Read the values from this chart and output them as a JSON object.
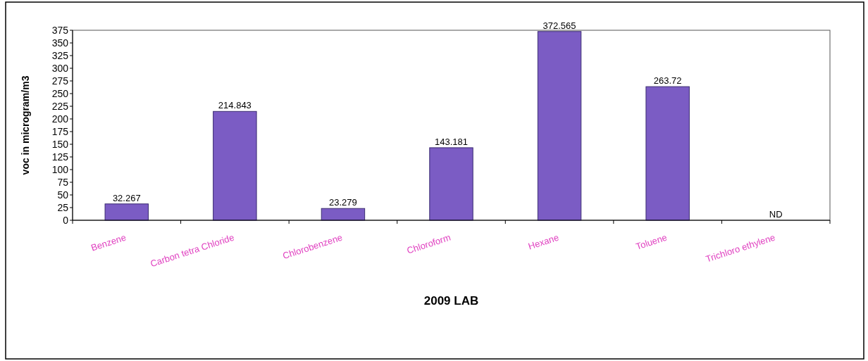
{
  "chart_data": {
    "type": "bar",
    "xlabel": "2009 LAB",
    "ylabel": "voc in microgram/m3",
    "categories": [
      "Benzene",
      "Carbon tetra Chloride",
      "Chlorobenzene",
      "Chloroform",
      "Hexane",
      "Toluene",
      "Trichloro ethylene"
    ],
    "values": [
      32.267,
      214.843,
      23.279,
      143.181,
      372.565,
      263.72,
      null
    ],
    "value_labels": [
      "32.267",
      "214.843",
      "23.279",
      "143.181",
      "372.565",
      "263.72",
      "ND"
    ],
    "color": "#7b5cc4",
    "ylim": [
      0,
      375
    ],
    "yticks": [
      0,
      25,
      50,
      75,
      100,
      125,
      150,
      175,
      200,
      225,
      250,
      275,
      300,
      325,
      350,
      375
    ],
    "grid": false
  }
}
